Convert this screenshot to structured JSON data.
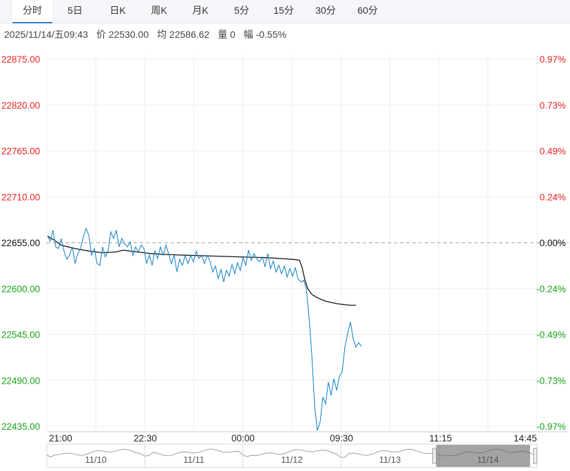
{
  "tabs": [
    {
      "label": "分时",
      "active": true
    },
    {
      "label": "5日",
      "active": false
    },
    {
      "label": "日K",
      "active": false
    },
    {
      "label": "周K",
      "active": false
    },
    {
      "label": "月K",
      "active": false
    },
    {
      "label": "5分",
      "active": false
    },
    {
      "label": "15分",
      "active": false
    },
    {
      "label": "30分",
      "active": false
    },
    {
      "label": "60分",
      "active": false
    }
  ],
  "info": {
    "datetime": "2025/11/14/五09:43",
    "price": "价 22530.00",
    "average": "均 22586.62",
    "volume": "量 0",
    "change": "幅 -0.55%"
  },
  "colors": {
    "up": "#e8231d",
    "down": "#17a317",
    "price_line": "#1f87c8",
    "avg_line": "#111111",
    "grid": "#e9edf2"
  },
  "chart_data": {
    "type": "line",
    "ylim": [
      22435,
      22875
    ],
    "prev_close": 22655,
    "y_ticks": [
      "22875.00",
      "22820.00",
      "22765.00",
      "22710.00",
      "22655.00",
      "22600.00",
      "22545.00",
      "22490.00",
      "22435.00"
    ],
    "y_tick_values": [
      22875,
      22820,
      22765,
      22710,
      22655,
      22600,
      22545,
      22490,
      22435
    ],
    "pct_ticks": [
      "0.97%",
      "0.73%",
      "0.49%",
      "0.24%",
      "0.00%",
      "-0.24%",
      "-0.49%",
      "-0.73%",
      "-0.97%"
    ],
    "x_ticks": [
      "21:00",
      "22:30",
      "00:00",
      "09:30",
      "11:15",
      "14:45"
    ],
    "series": [
      {
        "key": "price",
        "points": [
          [
            0,
            22663
          ],
          [
            4,
            22657
          ],
          [
            8,
            22670
          ],
          [
            12,
            22650
          ],
          [
            16,
            22648
          ],
          [
            20,
            22660
          ],
          [
            24,
            22645
          ],
          [
            28,
            22635
          ],
          [
            32,
            22640
          ],
          [
            36,
            22650
          ],
          [
            40,
            22630
          ],
          [
            44,
            22642
          ],
          [
            48,
            22648
          ],
          [
            52,
            22662
          ],
          [
            56,
            22672
          ],
          [
            60,
            22664
          ],
          [
            64,
            22640
          ],
          [
            68,
            22648
          ],
          [
            72,
            22630
          ],
          [
            76,
            22628
          ],
          [
            80,
            22650
          ],
          [
            84,
            22638
          ],
          [
            88,
            22645
          ],
          [
            92,
            22668
          ],
          [
            96,
            22660
          ],
          [
            100,
            22670
          ],
          [
            104,
            22650
          ],
          [
            108,
            22660
          ],
          [
            112,
            22654
          ],
          [
            116,
            22650
          ],
          [
            120,
            22656
          ],
          [
            124,
            22640
          ],
          [
            128,
            22650
          ],
          [
            132,
            22644
          ],
          [
            136,
            22652
          ],
          [
            140,
            22648
          ],
          [
            144,
            22630
          ],
          [
            148,
            22640
          ],
          [
            152,
            22628
          ],
          [
            156,
            22645
          ],
          [
            160,
            22636
          ],
          [
            164,
            22650
          ],
          [
            168,
            22640
          ],
          [
            172,
            22652
          ],
          [
            176,
            22642
          ],
          [
            180,
            22630
          ],
          [
            184,
            22640
          ],
          [
            188,
            22620
          ],
          [
            192,
            22635
          ],
          [
            196,
            22628
          ],
          [
            200,
            22640
          ],
          [
            204,
            22630
          ],
          [
            208,
            22640
          ],
          [
            212,
            22632
          ],
          [
            216,
            22645
          ],
          [
            220,
            22636
          ],
          [
            224,
            22640
          ],
          [
            228,
            22630
          ],
          [
            232,
            22640
          ],
          [
            236,
            22633
          ],
          [
            240,
            22620
          ],
          [
            244,
            22627
          ],
          [
            248,
            22612
          ],
          [
            252,
            22623
          ],
          [
            256,
            22608
          ],
          [
            260,
            22622
          ],
          [
            264,
            22615
          ],
          [
            268,
            22629
          ],
          [
            272,
            22618
          ],
          [
            276,
            22631
          ],
          [
            280,
            22622
          ],
          [
            284,
            22637
          ],
          [
            288,
            22628
          ],
          [
            292,
            22646
          ],
          [
            296,
            22634
          ],
          [
            300,
            22642
          ],
          [
            304,
            22636
          ],
          [
            308,
            22632
          ],
          [
            312,
            22638
          ],
          [
            316,
            22626
          ],
          [
            320,
            22642
          ],
          [
            324,
            22624
          ],
          [
            328,
            22633
          ],
          [
            332,
            22620
          ],
          [
            336,
            22628
          ],
          [
            340,
            22618
          ],
          [
            344,
            22627
          ],
          [
            348,
            22614
          ],
          [
            352,
            22624
          ],
          [
            356,
            22615
          ],
          [
            360,
            22625
          ],
          [
            364,
            22612
          ],
          [
            368,
            22608
          ],
          [
            372,
            22610
          ],
          [
            376,
            22600
          ],
          [
            380,
            22565
          ],
          [
            384,
            22520
          ],
          [
            388,
            22460
          ],
          [
            392,
            22430
          ],
          [
            396,
            22440
          ],
          [
            400,
            22470
          ],
          [
            404,
            22462
          ],
          [
            408,
            22488
          ],
          [
            412,
            22472
          ],
          [
            416,
            22492
          ],
          [
            420,
            22478
          ],
          [
            424,
            22495
          ],
          [
            428,
            22500
          ],
          [
            432,
            22530
          ],
          [
            436,
            22546
          ],
          [
            440,
            22560
          ],
          [
            444,
            22540
          ],
          [
            448,
            22530
          ],
          [
            452,
            22535
          ],
          [
            456,
            22531
          ]
        ]
      },
      {
        "key": "average",
        "points": [
          [
            0,
            22663
          ],
          [
            10,
            22658
          ],
          [
            20,
            22652
          ],
          [
            40,
            22648
          ],
          [
            60,
            22645
          ],
          [
            80,
            22643
          ],
          [
            100,
            22644
          ],
          [
            110,
            22646
          ],
          [
            130,
            22644
          ],
          [
            150,
            22642
          ],
          [
            170,
            22641
          ],
          [
            200,
            22640
          ],
          [
            240,
            22639
          ],
          [
            280,
            22638
          ],
          [
            320,
            22637
          ],
          [
            340,
            22636
          ],
          [
            358,
            22635
          ],
          [
            366,
            22634
          ],
          [
            370,
            22625
          ],
          [
            374,
            22610
          ],
          [
            378,
            22600
          ],
          [
            384,
            22593
          ],
          [
            392,
            22589
          ],
          [
            404,
            22585
          ],
          [
            420,
            22582
          ],
          [
            440,
            22580
          ],
          [
            448,
            22580
          ]
        ]
      }
    ]
  },
  "navigator": {
    "dates": [
      "11/10",
      "11/11",
      "11/12",
      "11/13",
      "11/14"
    ]
  }
}
